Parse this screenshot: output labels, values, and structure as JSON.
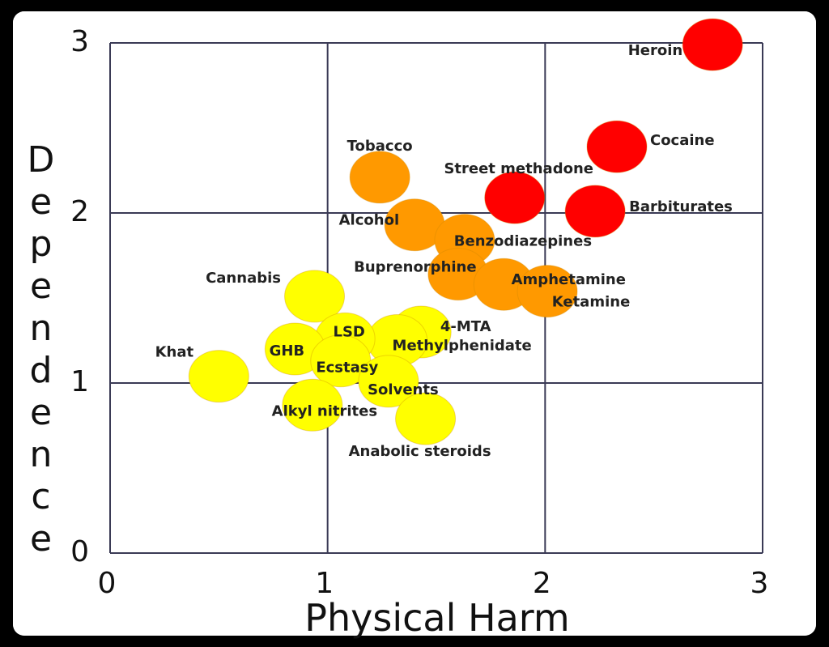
{
  "chart_data": {
    "type": "scatter",
    "xlabel": "Physical Harm",
    "ylabel": "Dependence",
    "xlim": [
      0,
      3
    ],
    "ylim": [
      0,
      3
    ],
    "xticks": [
      0,
      1,
      2,
      3
    ],
    "yticks": [
      0,
      1,
      2,
      3
    ],
    "grid": true,
    "labels": [
      "Heroin",
      "Cocaine",
      "Street methadone",
      "Barbiturates",
      "Tobacco",
      "Alcohol",
      "Benzodiazepines",
      "Buprenorphine",
      "Amphetamine",
      "Ketamine",
      "Cannabis",
      "4-MTA",
      "Methylphenidate",
      "LSD",
      "GHB",
      "Ecstasy",
      "Khat",
      "Solvents",
      "Alkyl nitrites",
      "Anabolic steroids"
    ],
    "x": [
      2.77,
      2.33,
      1.86,
      2.23,
      1.24,
      1.4,
      1.63,
      1.6,
      1.81,
      2.01,
      0.94,
      1.43,
      1.32,
      1.08,
      0.85,
      1.06,
      0.5,
      1.28,
      0.93,
      1.45
    ],
    "y": [
      2.99,
      2.39,
      2.09,
      2.01,
      2.21,
      1.93,
      1.84,
      1.64,
      1.58,
      1.54,
      1.51,
      1.3,
      1.25,
      1.26,
      1.2,
      1.13,
      1.04,
      1.01,
      0.87,
      0.79
    ],
    "colors": [
      "#ff0000",
      "#ff0000",
      "#ff0000",
      "#ff0000",
      "#ff9900",
      "#ff9900",
      "#ff9900",
      "#ff9900",
      "#ff9900",
      "#ff9900",
      "#ffff00",
      "#ffff00",
      "#ffff00",
      "#ffff00",
      "#ffff00",
      "#ffff00",
      "#ffff00",
      "#ffff00",
      "#ffff00",
      "#ffff00"
    ]
  }
}
